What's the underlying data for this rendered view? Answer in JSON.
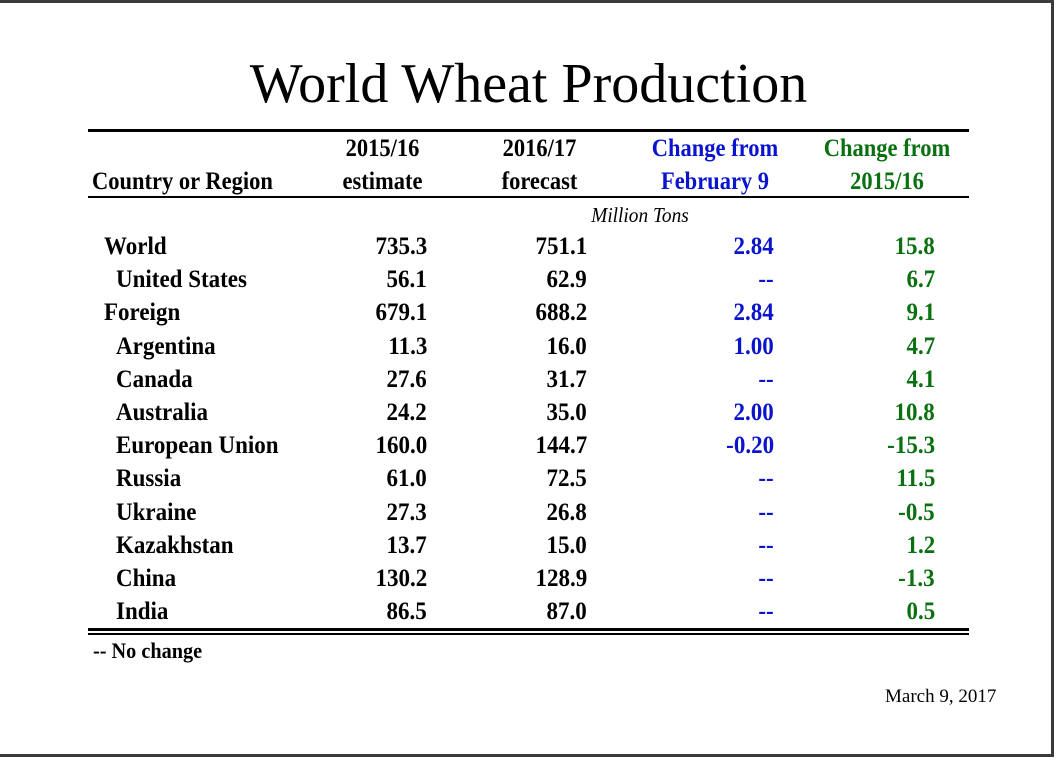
{
  "title": "World Wheat Production",
  "columns": {
    "region_label": "Country or Region",
    "col1_line1": "2015/16",
    "col1_line2": "estimate",
    "col2_line1": "2016/17",
    "col2_line2": "forecast",
    "col3_line1": "Change from",
    "col3_line2": "February 9",
    "col4_line1": "Change from",
    "col4_line2": "2015/16"
  },
  "unit": "Million Tons",
  "colors": {
    "change_feb": "#0a14cc",
    "change_year": "#0a7010"
  },
  "rows": [
    {
      "name": "World",
      "estimate": "735.3",
      "forecast": "751.1",
      "change_feb": "2.84",
      "change_year": "15.8"
    },
    {
      "name": "United States",
      "estimate": "56.1",
      "forecast": "62.9",
      "change_feb": "--",
      "change_year": "6.7"
    },
    {
      "name": "Foreign",
      "estimate": "679.1",
      "forecast": "688.2",
      "change_feb": "2.84",
      "change_year": "9.1"
    },
    {
      "name": "Argentina",
      "estimate": "11.3",
      "forecast": "16.0",
      "change_feb": "1.00",
      "change_year": "4.7"
    },
    {
      "name": "Canada",
      "estimate": "27.6",
      "forecast": "31.7",
      "change_feb": "--",
      "change_year": "4.1"
    },
    {
      "name": "Australia",
      "estimate": "24.2",
      "forecast": "35.0",
      "change_feb": "2.00",
      "change_year": "10.8"
    },
    {
      "name": "European Union",
      "estimate": "160.0",
      "forecast": "144.7",
      "change_feb": "-0.20",
      "change_year": "-15.3"
    },
    {
      "name": "Russia",
      "estimate": "61.0",
      "forecast": "72.5",
      "change_feb": "--",
      "change_year": "11.5"
    },
    {
      "name": "Ukraine",
      "estimate": "27.3",
      "forecast": "26.8",
      "change_feb": "--",
      "change_year": "-0.5"
    },
    {
      "name": "Kazakhstan",
      "estimate": "13.7",
      "forecast": "15.0",
      "change_feb": "--",
      "change_year": "1.2"
    },
    {
      "name": "China",
      "estimate": "130.2",
      "forecast": "128.9",
      "change_feb": "--",
      "change_year": "-1.3"
    },
    {
      "name": "India",
      "estimate": "86.5",
      "forecast": "87.0",
      "change_feb": "--",
      "change_year": "0.5"
    }
  ],
  "footnote": "-- No change",
  "date": "March 9, 2017"
}
